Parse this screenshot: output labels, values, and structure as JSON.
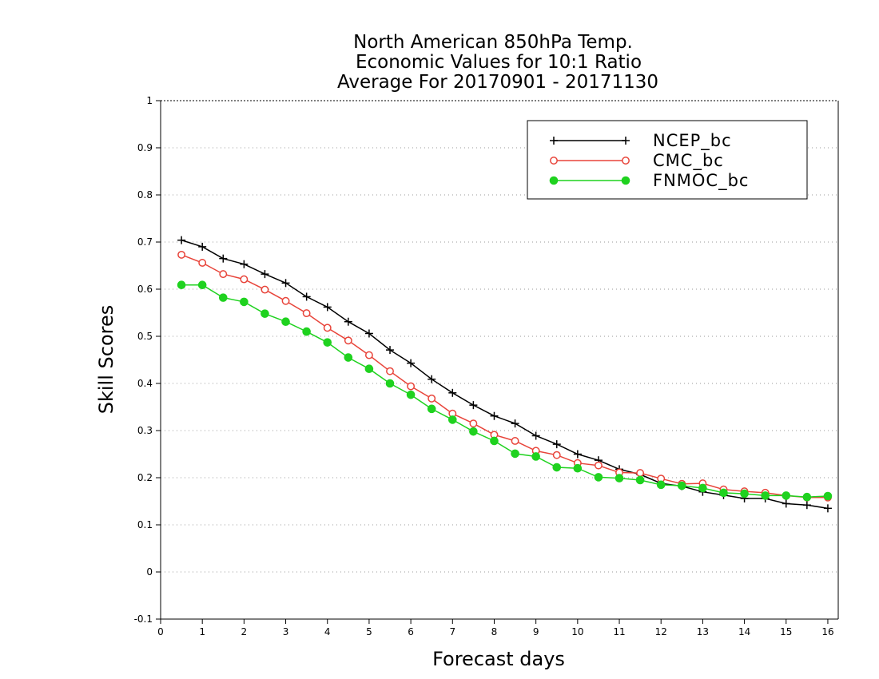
{
  "chart_data": {
    "type": "line",
    "title": [
      "North American 850hPa Temp.",
      "Economic Values for 10:1 Ratio",
      "Average For 20170901 - 20171130"
    ],
    "xlabel": "Forecast days",
    "ylabel": "Skill Scores",
    "xlim": [
      0,
      16.25
    ],
    "ylim": [
      -0.1,
      1
    ],
    "x_ticks": [
      "0",
      "1",
      "2",
      "3",
      "4",
      "5",
      "6",
      "7",
      "8",
      "9",
      "10",
      "11",
      "12",
      "13",
      "14",
      "15",
      "16"
    ],
    "y_ticks": [
      "-0.1",
      "0",
      "0.1",
      "0.2",
      "0.3",
      "0.4",
      "0.5",
      "0.6",
      "0.7",
      "0.8",
      "0.9",
      "1"
    ],
    "grid": "horizontal-dotted",
    "legend_position": "top-right",
    "x": [
      0.5,
      1,
      1.5,
      2,
      2.5,
      3,
      3.5,
      4,
      4.5,
      5,
      5.5,
      6,
      6.5,
      7,
      7.5,
      8,
      8.5,
      9,
      9.5,
      10,
      10.5,
      11,
      11.5,
      12,
      12.5,
      13,
      13.5,
      14,
      14.5,
      15,
      15.5,
      16
    ],
    "series": [
      {
        "name": "NCEP_bc",
        "color": "#000000",
        "marker": "plus",
        "values": [
          0.704,
          0.69,
          0.665,
          0.653,
          0.632,
          0.613,
          0.584,
          0.562,
          0.531,
          0.506,
          0.471,
          0.443,
          0.409,
          0.38,
          0.354,
          0.331,
          0.315,
          0.289,
          0.271,
          0.25,
          0.237,
          0.218,
          0.207,
          0.188,
          0.182,
          0.17,
          0.163,
          0.156,
          0.156,
          0.145,
          0.142,
          0.135
        ]
      },
      {
        "name": "CMC_bc",
        "color": "#e8443a",
        "marker": "open-circle",
        "values": [
          0.673,
          0.656,
          0.632,
          0.621,
          0.599,
          0.575,
          0.549,
          0.518,
          0.491,
          0.46,
          0.426,
          0.394,
          0.368,
          0.336,
          0.315,
          0.291,
          0.278,
          0.257,
          0.248,
          0.231,
          0.226,
          0.211,
          0.21,
          0.198,
          0.187,
          0.188,
          0.175,
          0.171,
          0.168,
          0.162,
          0.158,
          0.158
        ]
      },
      {
        "name": "FNMOC_bc",
        "color": "#1fd21f",
        "marker": "filled-circle",
        "values": [
          0.609,
          0.609,
          0.582,
          0.573,
          0.548,
          0.531,
          0.51,
          0.487,
          0.455,
          0.431,
          0.4,
          0.376,
          0.346,
          0.323,
          0.298,
          0.278,
          0.251,
          0.245,
          0.222,
          0.22,
          0.201,
          0.199,
          0.195,
          0.185,
          0.183,
          0.178,
          0.168,
          0.166,
          0.162,
          0.162,
          0.159,
          0.161
        ]
      }
    ]
  }
}
